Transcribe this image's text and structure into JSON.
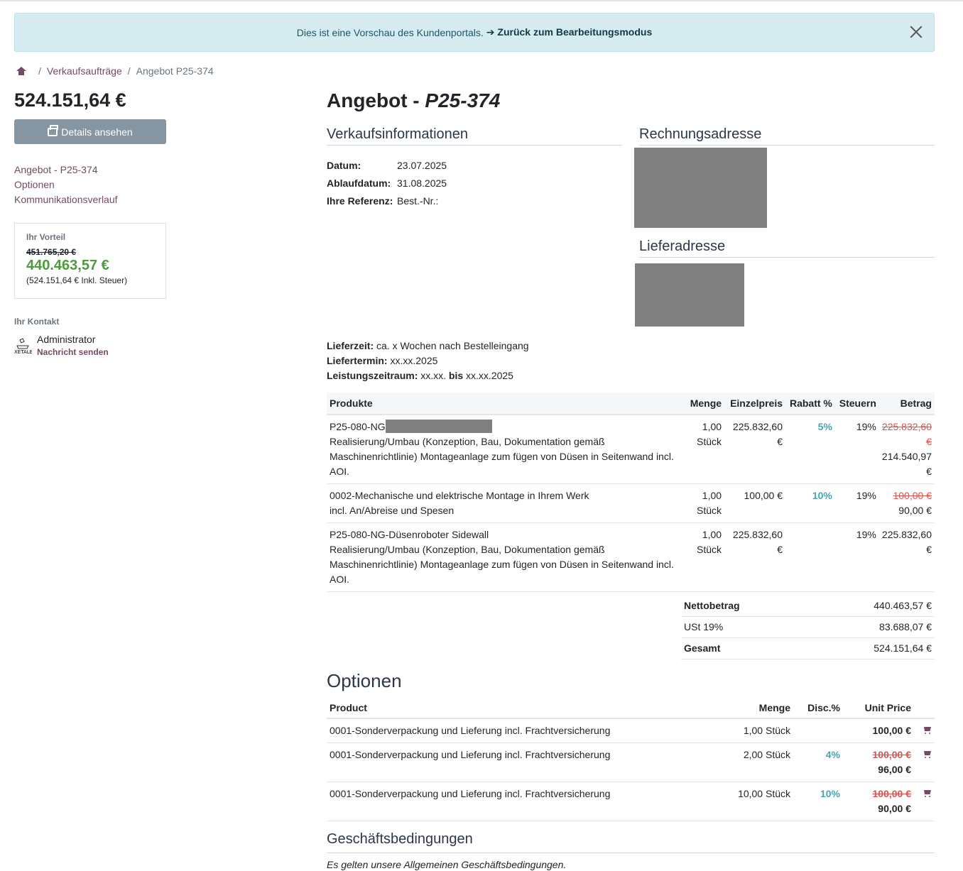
{
  "banner": {
    "text": "Dies ist eine Vorschau des Kundenportals.",
    "link": "➔ Zurück zum Bearbeitungsmodus"
  },
  "breadcrumb": {
    "items": [
      "Verkaufsaufträge",
      "Angebot P25-374"
    ]
  },
  "sidebar": {
    "amount": "524.151,64 €",
    "details_button": "Details ansehen",
    "links": [
      "Angebot - P25-374",
      "Optionen",
      "Kommunikationsverlauf"
    ],
    "advantage": {
      "label": "Ihr Vorteil",
      "old_price": "451.765,20 €",
      "new_price": "440.463,57 €",
      "incl": "(524.151,64 € Inkl. Steuer)"
    },
    "contact": {
      "label": "Ihr Kontakt",
      "name": "Administrator",
      "message": "Nachricht senden"
    }
  },
  "document": {
    "title_prefix": "Angebot - ",
    "title_ref": "P25-374"
  },
  "sales_info": {
    "heading": "Verkaufsinformationen",
    "rows": [
      {
        "key": "Datum:",
        "value": "23.07.2025"
      },
      {
        "key": "Ablaufdatum:",
        "value": "31.08.2025"
      },
      {
        "key": "Ihre Referenz:",
        "value": "Best.-Nr.:"
      }
    ]
  },
  "addresses": {
    "billing_heading": "Rechnungsadresse",
    "shipping_heading": "Lieferadresse"
  },
  "delivery": {
    "lieferzeit_label": "Lieferzeit:",
    "lieferzeit": "ca. x Wochen nach Bestelleingang",
    "liefertermin_label": "Liefertermin:",
    "liefertermin": "xx.xx.2025",
    "leistung_label": "Leistungszeitraum:",
    "leistung_from": "xx.xx.",
    "leistung_bis": "bis",
    "leistung_to": "xx.xx.2025"
  },
  "products": {
    "headers": [
      "Produkte",
      "Menge",
      "Einzelpreis",
      "Rabatt %",
      "Steuern",
      "Betrag"
    ],
    "rows": [
      {
        "name": "P25-080-NG",
        "desc": "Realisierung/Umbau (Konzeption, Bau, Dokumentation gemäß Maschinenrichtlinie) Montageanlage zum fügen von Düsen in Seitenwand incl. AOI.",
        "qty": "1,00",
        "unit": "Stück",
        "price": "225.832,60 €",
        "discount": "5%",
        "tax": "19%",
        "old_amount": "225.832,60 €",
        "amount": "214.540,97 €"
      },
      {
        "name": "0002-Mechanische und elektrische Montage in Ihrem Werk",
        "desc": "incl. An/Abreise und Spesen",
        "qty": "1,00",
        "unit": "Stück",
        "price": "100,00 €",
        "discount": "10%",
        "tax": "19%",
        "old_amount": "100,00 €",
        "amount": "90,00 €"
      },
      {
        "name": "P25-080-NG-Düsenroboter Sidewall",
        "desc": "Realisierung/Umbau (Konzeption, Bau, Dokumentation gemäß Maschinenrichtlinie) Montageanlage zum fügen von Düsen in Seitenwand incl. AOI.",
        "qty": "1,00",
        "unit": "Stück",
        "price": "225.832,60 €",
        "discount": "",
        "tax": "19%",
        "old_amount": "",
        "amount": "225.832,60 €"
      }
    ]
  },
  "totals": {
    "rows": [
      {
        "label": "Nettobetrag",
        "value": "440.463,57 €"
      },
      {
        "label": "USt 19%",
        "value": "83.688,07 €"
      },
      {
        "label": "Gesamt",
        "value": "524.151,64 €"
      }
    ]
  },
  "options": {
    "heading": "Optionen",
    "headers": [
      "Product",
      "Menge",
      "Disc.%",
      "Unit Price"
    ],
    "rows": [
      {
        "name": "0001-Sonderverpackung und Lieferung incl. Frachtversicherung",
        "qty": "1,00 Stück",
        "disc": "",
        "old_price": "",
        "price": "100,00 €"
      },
      {
        "name": "0001-Sonderverpackung und Lieferung incl. Frachtversicherung",
        "qty": "2,00 Stück",
        "disc": "4%",
        "old_price": "100,00 €",
        "price": "96,00 €"
      },
      {
        "name": "0001-Sonderverpackung und Lieferung incl. Frachtversicherung",
        "qty": "10,00 Stück",
        "disc": "10%",
        "old_price": "100,00 €",
        "price": "90,00 €"
      }
    ]
  },
  "terms": {
    "heading": "Geschäftsbedingungen",
    "text": "Es gelten unsere Allgemeinen Geschäftsbedingungen."
  },
  "colors": {
    "accent": "#714b67",
    "discount": "#47a3b0",
    "saving": "#4d9a3d",
    "strike": "#d9534f",
    "banner_bg": "#d6ecf1"
  }
}
